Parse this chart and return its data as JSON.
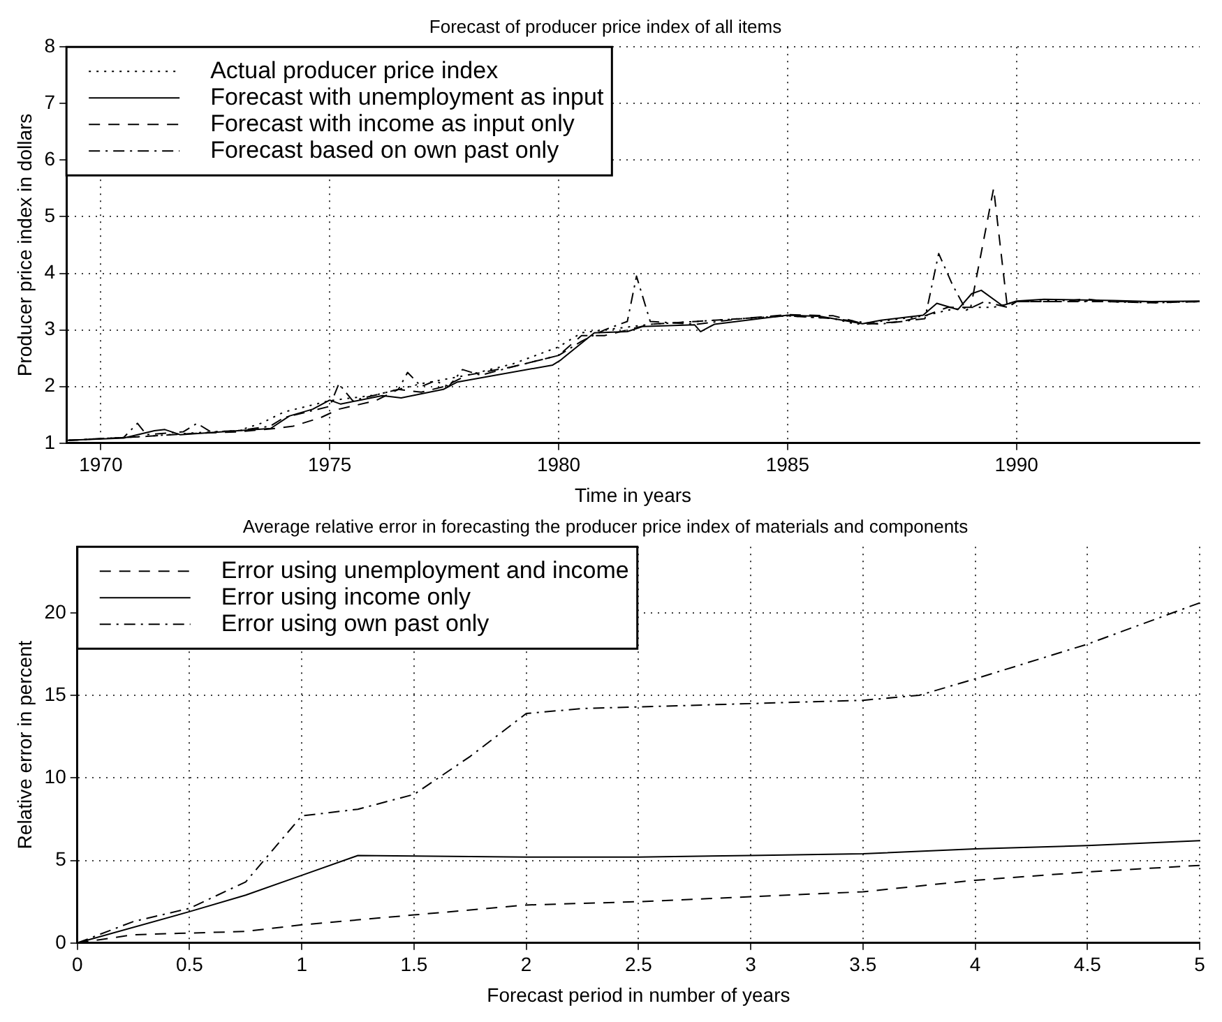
{
  "chart_data": [
    {
      "type": "line",
      "title": "Forecast of producer price index of all items",
      "xlabel": "Time in years",
      "ylabel": "Producer price index in dollars",
      "xlim": [
        1969.25,
        1994
      ],
      "xticks": [
        1970,
        1975,
        1980,
        1985,
        1990
      ],
      "ylim": [
        1,
        8
      ],
      "yticks": [
        1,
        2,
        3,
        4,
        5,
        6,
        7,
        8
      ],
      "grid": true,
      "legend": "top left",
      "marker": "none",
      "series": [
        {
          "name": "Actual producer price index",
          "color": "#000000",
          "line_style": "dotted",
          "x": [
            1969.3,
            1970,
            1971,
            1972,
            1973,
            1973.5,
            1974,
            1975,
            1976,
            1977,
            1978,
            1979,
            1980,
            1980.5,
            1981,
            1982,
            1983,
            1984,
            1985,
            1986,
            1986.5,
            1987,
            1988,
            1988.5,
            1989,
            1989.5,
            1990,
            1991,
            1992,
            1993,
            1994
          ],
          "values": [
            1.05,
            1.08,
            1.12,
            1.18,
            1.22,
            1.35,
            1.55,
            1.75,
            1.85,
            2.05,
            2.2,
            2.4,
            2.7,
            2.95,
            3.0,
            3.1,
            3.15,
            3.2,
            3.25,
            3.2,
            3.1,
            3.15,
            3.25,
            3.35,
            3.4,
            3.4,
            3.5,
            3.52,
            3.5,
            3.48,
            3.5
          ]
        },
        {
          "name": "Forecast with unemployment as input",
          "color": "#000000",
          "line_style": "solid",
          "x": [
            1969.26,
            1970.5,
            1971.17,
            1971.4,
            1971.73,
            1973.71,
            1974.12,
            1974.63,
            1975,
            1975.24,
            1976.15,
            1976.56,
            1977.48,
            1977.79,
            1979.87,
            1980.03,
            1980.78,
            1981.5,
            1981.83,
            1982.97,
            1983.1,
            1983.4,
            1985,
            1985.72,
            1986.64,
            1987.04,
            1987.96,
            1988.26,
            1988.72,
            1989.02,
            1989.23,
            1989.69,
            1990,
            1990.6,
            1992.13,
            1992.94,
            1994
          ],
          "values": [
            1.05,
            1.09,
            1.22,
            1.24,
            1.15,
            1.26,
            1.48,
            1.6,
            1.76,
            1.69,
            1.84,
            1.8,
            1.95,
            2.08,
            2.38,
            2.46,
            2.95,
            2.97,
            3.06,
            3.09,
            2.97,
            3.1,
            3.26,
            3.24,
            3.11,
            3.17,
            3.26,
            3.47,
            3.36,
            3.64,
            3.7,
            3.43,
            3.51,
            3.54,
            3.52,
            3.5,
            3.51
          ]
        },
        {
          "name": "Forecast with income as input only",
          "color": "#000000",
          "line_style": "dashed",
          "x": [
            1969.3,
            1971,
            1972,
            1973,
            1973.7,
            1974.2,
            1974.8,
            1975.2,
            1976,
            1976.5,
            1977,
            1977.5,
            1978,
            1979,
            1980,
            1980.5,
            1981,
            1981.5,
            1982,
            1983,
            1984,
            1985,
            1986,
            1986.7,
            1987.5,
            1988,
            1988.5,
            1989,
            1989.5,
            1989.8,
            1990,
            1991,
            1991.5,
            1992,
            1993,
            1994
          ],
          "values": [
            1.05,
            1.12,
            1.17,
            1.2,
            1.25,
            1.3,
            1.45,
            1.6,
            1.75,
            1.95,
            1.9,
            2.0,
            2.2,
            2.35,
            2.55,
            2.9,
            2.9,
            3.0,
            3.1,
            3.15,
            3.2,
            3.27,
            3.25,
            3.1,
            3.15,
            3.25,
            3.4,
            3.4,
            5.5,
            3.4,
            3.5,
            3.5,
            3.55,
            3.5,
            3.48,
            3.5
          ]
        },
        {
          "name": "Forecast based on own past only",
          "color": "#000000",
          "line_style": "dashdot",
          "x": [
            1969.3,
            1970.5,
            1970.8,
            1971,
            1971.8,
            1972.1,
            1972.4,
            1973,
            1973.7,
            1974,
            1974.5,
            1975,
            1975.2,
            1975.5,
            1976.5,
            1976.7,
            1977,
            1977.3,
            1977.6,
            1977.9,
            1978.3,
            1979,
            1980,
            1980.5,
            1981,
            1981.5,
            1981.7,
            1982,
            1983,
            1984,
            1985,
            1986,
            1987,
            1988,
            1988.3,
            1988.6,
            1988.9,
            1989.3,
            1989.8,
            1990,
            1991,
            1992,
            1994
          ],
          "values": [
            1.05,
            1.1,
            1.35,
            1.15,
            1.2,
            1.35,
            1.2,
            1.22,
            1.3,
            1.45,
            1.55,
            1.65,
            2.05,
            1.75,
            1.95,
            2.25,
            2.0,
            2.1,
            2.0,
            2.3,
            2.2,
            2.35,
            2.55,
            2.8,
            3.0,
            3.15,
            3.95,
            3.15,
            3.1,
            3.2,
            3.25,
            3.2,
            3.1,
            3.2,
            4.35,
            3.8,
            3.35,
            3.5,
            3.4,
            3.5,
            3.5,
            3.5,
            3.5
          ]
        }
      ]
    },
    {
      "type": "line",
      "title": "Average relative error in forecasting the producer price index of materials and components",
      "xlabel": "Forecast period in number of years",
      "ylabel": "Relative error in percent",
      "xlim": [
        0,
        5
      ],
      "xticks": [
        0,
        0.5,
        1,
        1.5,
        2,
        2.5,
        3,
        3.5,
        4,
        4.5,
        5
      ],
      "ylim": [
        0,
        24
      ],
      "yticks": [
        0,
        5,
        10,
        15,
        20
      ],
      "grid": true,
      "legend": "top left",
      "marker": "none",
      "series": [
        {
          "name": "Error using unemployment and income",
          "color": "#000000",
          "line_style": "dashed",
          "x": [
            0,
            0.25,
            0.5,
            0.75,
            1,
            1.5,
            2,
            2.5,
            3,
            3.5,
            4,
            4.5,
            5
          ],
          "values": [
            0,
            0.5,
            0.6,
            0.7,
            1.1,
            1.7,
            2.3,
            2.5,
            2.8,
            3.1,
            3.8,
            4.3,
            4.7
          ]
        },
        {
          "name": "Error using income only",
          "color": "#000000",
          "line_style": "solid",
          "x": [
            0,
            0.5,
            0.75,
            1,
            1.25,
            2,
            2.5,
            3,
            3.5,
            4,
            4.5,
            5
          ],
          "values": [
            0,
            1.9,
            2.9,
            4.1,
            5.3,
            5.2,
            5.2,
            5.3,
            5.4,
            5.7,
            5.9,
            6.2
          ]
        },
        {
          "name": "Error using own past only",
          "color": "#000000",
          "line_style": "dashdot",
          "x": [
            0,
            0.25,
            0.5,
            0.75,
            1,
            1.25,
            1.5,
            1.75,
            2,
            2.25,
            2.5,
            3,
            3.5,
            3.75,
            4,
            4.5,
            5
          ],
          "values": [
            0,
            1.3,
            2.1,
            3.7,
            7.7,
            8.1,
            9.0,
            11.3,
            13.9,
            14.2,
            14.3,
            14.5,
            14.7,
            15.0,
            16.0,
            18.1,
            20.6
          ]
        }
      ]
    }
  ]
}
